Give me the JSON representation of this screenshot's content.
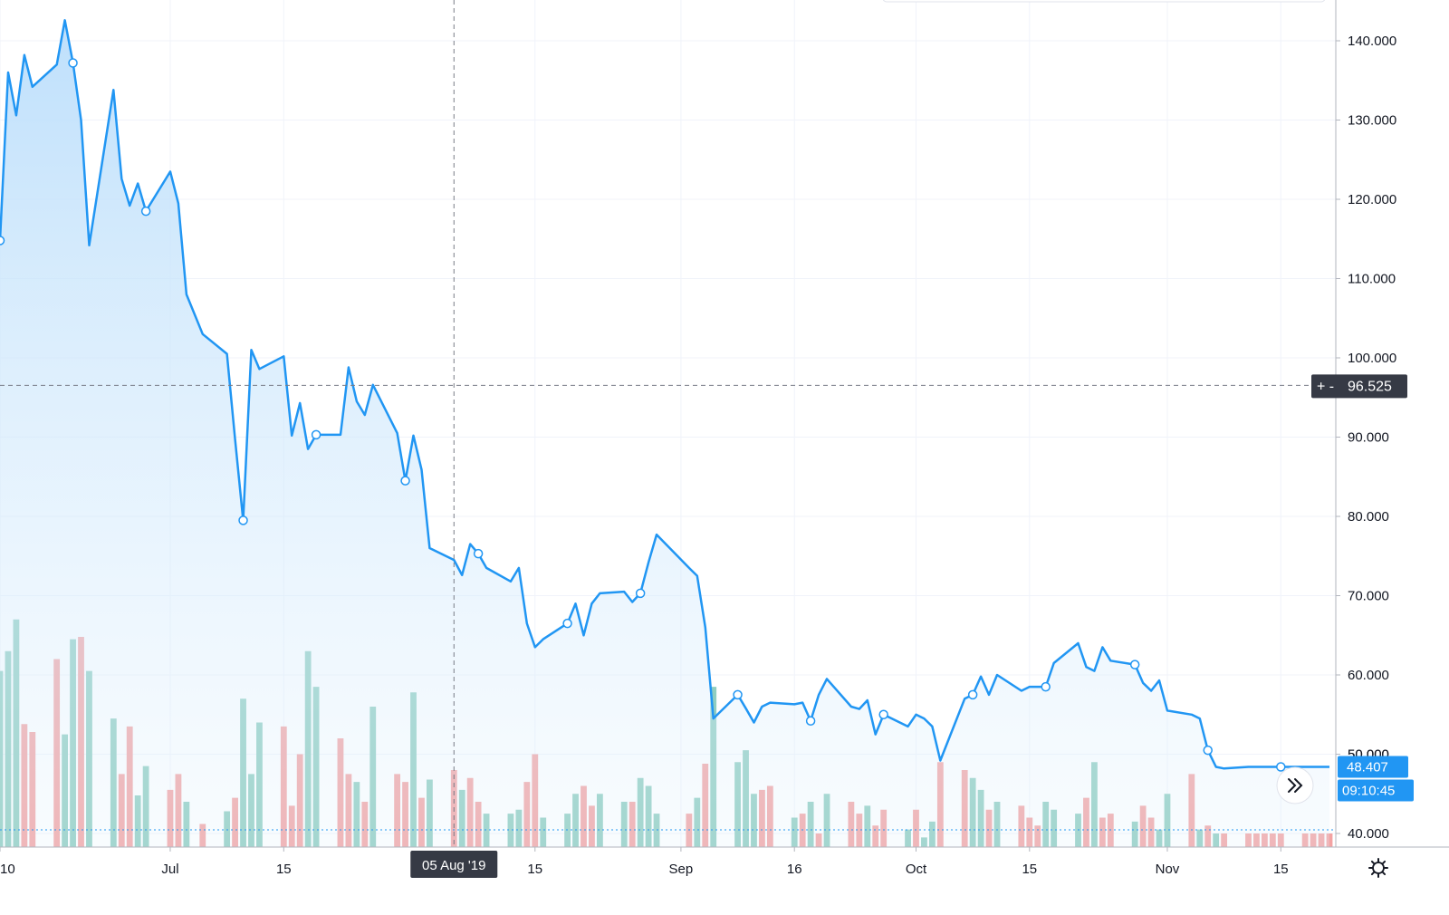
{
  "chart_data": {
    "type": "area",
    "title": "",
    "xlabel": "",
    "ylabel": "",
    "x_range": [
      "2019-06-10",
      "2019-11-21"
    ],
    "ylim": [
      37.5,
      147
    ],
    "y_ticks": [
      40,
      50,
      60,
      70,
      80,
      90,
      100,
      110,
      120,
      130,
      140
    ],
    "y_tick_labels": [
      "40.000",
      "50.000",
      "60.000",
      "70.000",
      "80.000",
      "90.000",
      "100.000",
      "110.000",
      "120.000",
      "130.000",
      "140.000"
    ],
    "x_ticks": [
      {
        "date": "2019-06-10",
        "label": "10"
      },
      {
        "date": "2019-07-01",
        "label": "Jul"
      },
      {
        "date": "2019-07-15",
        "label": "15"
      },
      {
        "date": "2019-08-15",
        "label": "15"
      },
      {
        "date": "2019-09-02",
        "label": "Sep"
      },
      {
        "date": "2019-09-16",
        "label": "16"
      },
      {
        "date": "2019-10-01",
        "label": "Oct"
      },
      {
        "date": "2019-10-15",
        "label": "15"
      },
      {
        "date": "2019-11-01",
        "label": "Nov"
      },
      {
        "date": "2019-11-15",
        "label": "15"
      }
    ],
    "grid": true,
    "colors": {
      "line": "#2196f3",
      "area_top": "#bbdefb",
      "volume_up": "#8fcdc0",
      "volume_down": "#f3a3a3",
      "crosshair": "#787b86",
      "axis_text": "#131722",
      "label_dark": "#363a45",
      "label_blue": "#2196f3"
    },
    "series": [
      {
        "type": "line",
        "x": [
          "2019-06-10",
          "2019-06-11",
          "2019-06-12",
          "2019-06-13",
          "2019-06-14",
          "2019-06-17",
          "2019-06-18",
          "2019-06-19",
          "2019-06-20",
          "2019-06-21",
          "2019-06-24",
          "2019-06-25",
          "2019-06-26",
          "2019-06-27",
          "2019-06-28",
          "2019-07-01",
          "2019-07-02",
          "2019-07-03",
          "2019-07-05",
          "2019-07-08",
          "2019-07-09",
          "2019-07-10",
          "2019-07-11",
          "2019-07-12",
          "2019-07-15",
          "2019-07-16",
          "2019-07-17",
          "2019-07-18",
          "2019-07-19",
          "2019-07-22",
          "2019-07-23",
          "2019-07-24",
          "2019-07-25",
          "2019-07-26",
          "2019-07-29",
          "2019-07-30",
          "2019-07-31",
          "2019-08-01",
          "2019-08-02",
          "2019-08-05",
          "2019-08-06",
          "2019-08-07",
          "2019-08-08",
          "2019-08-09",
          "2019-08-12",
          "2019-08-13",
          "2019-08-14",
          "2019-08-15",
          "2019-08-16",
          "2019-08-19",
          "2019-08-20",
          "2019-08-21",
          "2019-08-22",
          "2019-08-23",
          "2019-08-26",
          "2019-08-27",
          "2019-08-28",
          "2019-08-29",
          "2019-08-30",
          "2019-09-03",
          "2019-09-04",
          "2019-09-05",
          "2019-09-06",
          "2019-09-09",
          "2019-09-10",
          "2019-09-11",
          "2019-09-12",
          "2019-09-13",
          "2019-09-16",
          "2019-09-17",
          "2019-09-18",
          "2019-09-19",
          "2019-09-20",
          "2019-09-23",
          "2019-09-24",
          "2019-09-25",
          "2019-09-26",
          "2019-09-27",
          "2019-09-30",
          "2019-10-01",
          "2019-10-02",
          "2019-10-03",
          "2019-10-04",
          "2019-10-07",
          "2019-10-08",
          "2019-10-09",
          "2019-10-10",
          "2019-10-11",
          "2019-10-14",
          "2019-10-15",
          "2019-10-16",
          "2019-10-17",
          "2019-10-18",
          "2019-10-21",
          "2019-10-22",
          "2019-10-23",
          "2019-10-24",
          "2019-10-25",
          "2019-10-28",
          "2019-10-29",
          "2019-10-30",
          "2019-10-31",
          "2019-11-01",
          "2019-11-04",
          "2019-11-05",
          "2019-11-06",
          "2019-11-07",
          "2019-11-08",
          "2019-11-11",
          "2019-11-12",
          "2019-11-13",
          "2019-11-14",
          "2019-11-15",
          "2019-11-18",
          "2019-11-19",
          "2019-11-20",
          "2019-11-21"
        ],
        "values": [
          114.8,
          136.0,
          130.6,
          138.2,
          134.2,
          137.0,
          142.6,
          137.2,
          130.0,
          114.2,
          133.8,
          122.6,
          119.2,
          122.0,
          118.5,
          123.5,
          119.5,
          108.0,
          103.0,
          100.5,
          89.7,
          79.5,
          101.0,
          98.6,
          100.2,
          90.2,
          94.3,
          88.5,
          90.3,
          90.3,
          98.8,
          94.5,
          92.8,
          96.6,
          90.5,
          84.5,
          90.2,
          85.9,
          76.0,
          74.5,
          72.6,
          76.5,
          75.3,
          73.5,
          71.8,
          73.5,
          66.5,
          63.5,
          64.5,
          66.5,
          69.0,
          65.0,
          69.0,
          70.3,
          70.5,
          69.2,
          70.3,
          74.2,
          77.7,
          73.5,
          72.5,
          66.0,
          54.5,
          57.5,
          55.8,
          54.0,
          56.0,
          56.5,
          56.3,
          56.5,
          54.2,
          57.5,
          59.5,
          56.0,
          55.7,
          56.8,
          52.5,
          55.0,
          53.5,
          55.0,
          54.5,
          53.5,
          49.2,
          57.0,
          57.5,
          59.8,
          57.5,
          60.0,
          58.0,
          58.5,
          58.5,
          58.5,
          61.5,
          64.0,
          61.0,
          60.5,
          63.5,
          61.8,
          61.3,
          59.0,
          58.0,
          59.3,
          55.5,
          55.0,
          54.5,
          50.5,
          48.4,
          48.2,
          48.4,
          48.4,
          48.4,
          48.4,
          48.4,
          48.4,
          48.4,
          48.4,
          48.4
        ]
      },
      {
        "type": "bar",
        "name": "",
        "values": [
          60.5,
          63.0,
          67.0,
          53.8,
          52.8,
          62.0,
          52.5,
          64.5,
          64.8,
          60.5,
          54.5,
          47.5,
          53.5,
          44.8,
          48.5,
          45.5,
          47.5,
          44.0,
          41.2,
          42.8,
          44.5,
          57.0,
          47.5,
          54.0,
          53.5,
          43.5,
          50.0,
          63.0,
          58.5,
          52.0,
          47.5,
          46.5,
          44.0,
          56.0,
          47.5,
          46.5,
          57.8,
          44.5,
          46.8,
          48.0,
          45.5,
          47.0,
          44.0,
          42.5,
          42.5,
          43.0,
          46.5,
          50.0,
          42.0,
          42.5,
          45.0,
          46.0,
          43.5,
          45.0,
          44.0,
          44.0,
          47.0,
          46.0,
          42.5,
          42.5,
          44.5,
          48.8,
          58.5,
          49.0,
          50.5,
          45.0,
          45.5,
          46.0,
          42.0,
          42.5,
          44.0,
          40.0,
          45.0,
          44.0,
          42.5,
          43.5,
          41.0,
          43.0,
          40.5,
          43.0,
          39.5,
          41.5,
          49.0,
          48.0,
          47.0,
          45.5,
          43.0,
          44.0,
          43.5,
          42.0,
          41.0,
          44.0,
          43.0,
          42.5,
          44.5,
          49.0,
          42.0,
          42.5,
          41.5,
          43.5,
          42.0,
          40.5,
          45.0,
          47.5,
          40.5,
          41.0,
          40.0,
          40.0,
          40.0,
          40.0,
          40.0,
          40.0,
          40.0,
          40.0,
          40.0,
          40.0,
          40.0
        ],
        "direction": [
          "up",
          "up",
          "up",
          "down",
          "down",
          "down",
          "up",
          "up",
          "down",
          "up",
          "up",
          "down",
          "down",
          "up",
          "up",
          "down",
          "down",
          "up",
          "down",
          "up",
          "down",
          "up",
          "up",
          "up",
          "down",
          "down",
          "down",
          "up",
          "up",
          "down",
          "down",
          "up",
          "down",
          "up",
          "down",
          "down",
          "up",
          "down",
          "up",
          "down",
          "up",
          "down",
          "down",
          "up",
          "up",
          "up",
          "down",
          "down",
          "up",
          "up",
          "up",
          "down",
          "down",
          "up",
          "up",
          "down",
          "up",
          "up",
          "up",
          "down",
          "up",
          "down",
          "up",
          "up",
          "up",
          "up",
          "down",
          "down",
          "up",
          "down",
          "up",
          "down",
          "up",
          "down",
          "down",
          "up",
          "down",
          "down",
          "up",
          "down",
          "up",
          "up",
          "down",
          "down",
          "up",
          "up",
          "down",
          "up",
          "down",
          "down",
          "down",
          "up",
          "up",
          "up",
          "down",
          "up",
          "down",
          "down",
          "up",
          "down",
          "down",
          "up",
          "up",
          "down",
          "up",
          "down",
          "up",
          "down",
          "down",
          "down",
          "down",
          "down",
          "down",
          "down",
          "down",
          "down",
          "down"
        ]
      }
    ],
    "crosshair": {
      "x": "2019-08-05",
      "y": 96.525,
      "y_label": "96.525",
      "x_label": "05 Aug '19",
      "y_prefix": "+ -"
    },
    "last_price": {
      "value": 48.407,
      "label": "48.407",
      "countdown": "09:10:45"
    },
    "partial_tick_label": "50.000"
  }
}
